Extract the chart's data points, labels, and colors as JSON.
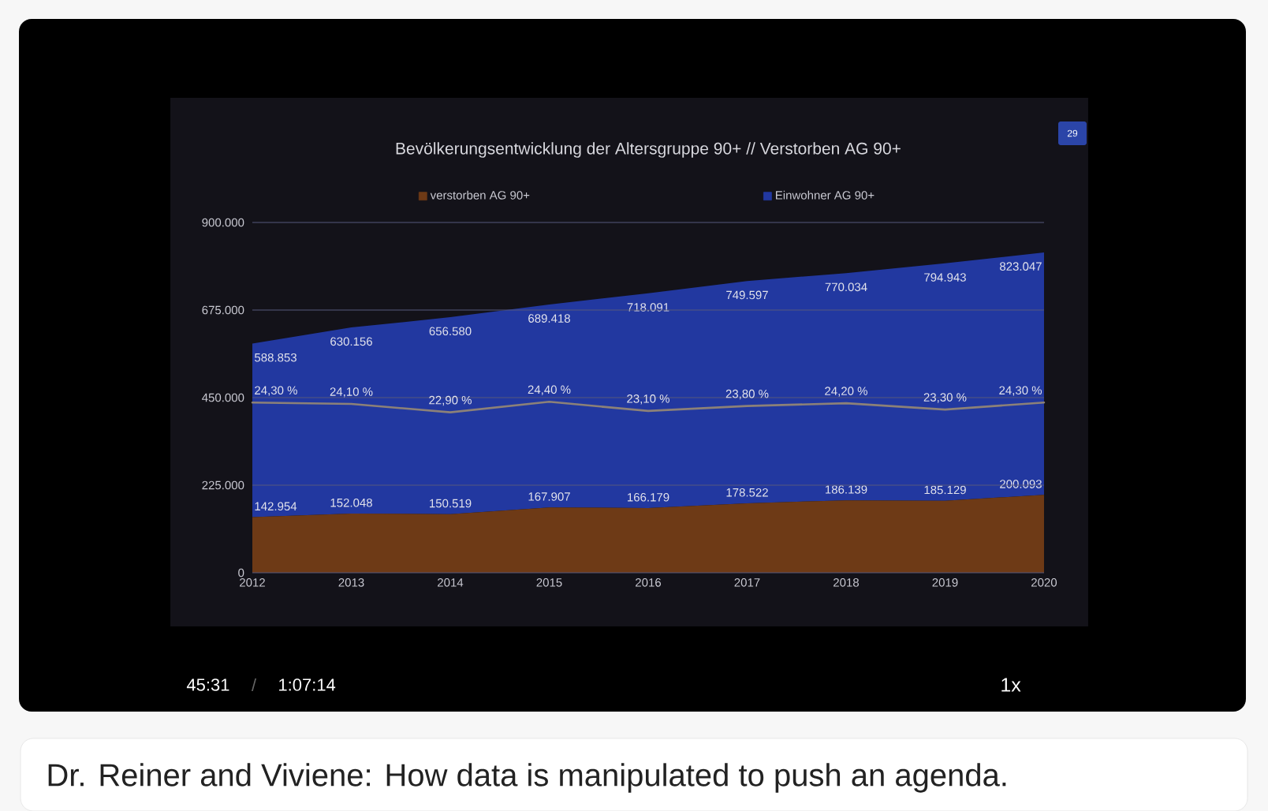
{
  "chart_data": {
    "type": "area",
    "title": "Bevölkerungsentwicklung der Altersgruppe 90+ // Verstorben AG 90+",
    "x": [
      2012,
      2013,
      2014,
      2015,
      2016,
      2017,
      2018,
      2019,
      2020
    ],
    "xlim": [
      2012,
      2020
    ],
    "xticks": [
      2012,
      2013,
      2014,
      2015,
      2016,
      2017,
      2018,
      2019,
      2020
    ],
    "ylim": [
      0,
      900000
    ],
    "yticks": [
      0,
      {
        "value": 225000,
        "label": "225.000"
      },
      {
        "value": 450000,
        "label": "450.000"
      },
      {
        "value": 675000,
        "label": "675.000"
      },
      {
        "value": 900000,
        "label": "900.000"
      }
    ],
    "y2lim": [
      0,
      50
    ],
    "series": [
      {
        "name": "verstorben AG 90+",
        "color": "#6e3a16",
        "values": [
          142954,
          152048,
          150519,
          167907,
          166179,
          178522,
          186139,
          185129,
          200093
        ],
        "value_labels": [
          "142.954",
          "152.048",
          "150.519",
          "167.907",
          "166.179",
          "178.522",
          "186.139",
          "185.129",
          "200.093"
        ]
      },
      {
        "name": "Einwohner AG 90+",
        "color": "#2238a0",
        "values": [
          588853,
          630156,
          656580,
          689418,
          718091,
          749597,
          770034,
          794943,
          823047
        ],
        "value_labels": [
          "588.853",
          "630.156",
          "656.580",
          "689.418",
          "718.091",
          "749.597",
          "770.034",
          "794.943",
          "823.047"
        ]
      },
      {
        "type": "line",
        "axis": "y2",
        "color": "#8c8178",
        "values": [
          24.3,
          24.1,
          22.9,
          24.4,
          23.1,
          23.8,
          24.2,
          23.3,
          24.3
        ],
        "value_labels": [
          "24,30 %",
          "24,10 %",
          "22,90 %",
          "24,40 %",
          "23,10 %",
          "23,80 %",
          "24,20 %",
          "23,30 %",
          "24,30 %"
        ]
      }
    ],
    "grid": "y",
    "legend": "top",
    "annotations": [
      "29",
      "45:31",
      "/",
      "1:07:14",
      "1x",
      "Dr. Reiner and Viviene: How data is manipulated to push an agenda."
    ]
  }
}
